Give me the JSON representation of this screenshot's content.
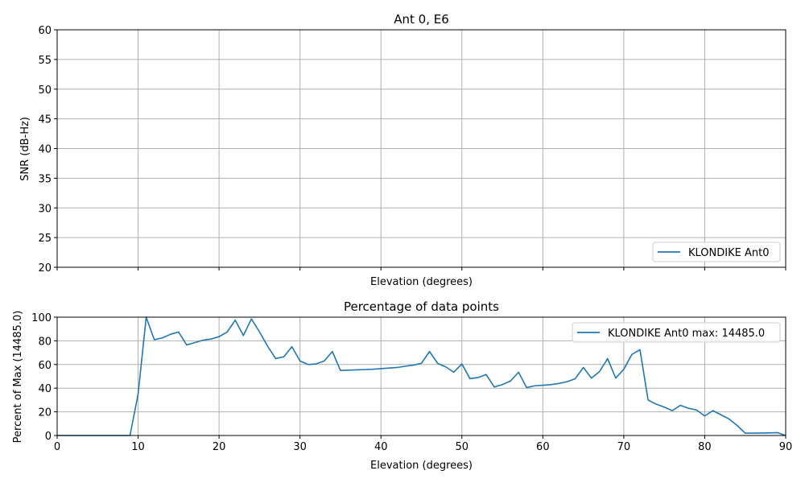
{
  "chart_data": [
    {
      "type": "line",
      "title": "Ant 0, E6",
      "xlabel": "Elevation (degrees)",
      "ylabel": "SNR (dB-Hz)",
      "xlim": [
        0,
        90
      ],
      "ylim": [
        20,
        60
      ],
      "yticks": [
        20,
        25,
        30,
        35,
        40,
        45,
        50,
        55,
        60
      ],
      "xticks": [
        0,
        10,
        20,
        30,
        40,
        50,
        60,
        70,
        80,
        90
      ],
      "show_xtick_labels": false,
      "grid": true,
      "legend": {
        "position": "lower-right",
        "entries": [
          "KLONDIKE Ant0"
        ]
      },
      "series": [
        {
          "name": "KLONDIKE Ant0",
          "color": "#1f77b4",
          "x": [],
          "y": []
        }
      ]
    },
    {
      "type": "line",
      "title": "Percentage of data points",
      "xlabel": "Elevation (degrees)",
      "ylabel": "Percent of Max (14485.0)",
      "xlim": [
        0,
        90
      ],
      "ylim": [
        0,
        100
      ],
      "yticks": [
        0,
        20,
        40,
        60,
        80,
        100
      ],
      "xticks": [
        0,
        10,
        20,
        30,
        40,
        50,
        60,
        70,
        80,
        90
      ],
      "show_xtick_labels": true,
      "grid": true,
      "legend": {
        "position": "upper-right",
        "entries": [
          "KLONDIKE Ant0 max: 14485.0"
        ]
      },
      "series": [
        {
          "name": "KLONDIKE Ant0 max: 14485.0",
          "color": "#1f77b4",
          "x": [
            0,
            1,
            2,
            3,
            4,
            5,
            6,
            7,
            8,
            9,
            10,
            11,
            12,
            13,
            14,
            15,
            16,
            17,
            18,
            19,
            20,
            21,
            22,
            23,
            24,
            25,
            26,
            27,
            28,
            29,
            30,
            31,
            32,
            33,
            34,
            35,
            36,
            37,
            38,
            39,
            40,
            41,
            42,
            43,
            44,
            45,
            46,
            47,
            48,
            49,
            50,
            51,
            52,
            53,
            54,
            55,
            56,
            57,
            58,
            59,
            60,
            61,
            62,
            63,
            64,
            65,
            66,
            67,
            68,
            69,
            70,
            71,
            72,
            73,
            74,
            75,
            76,
            77,
            78,
            79,
            80,
            81,
            82,
            83,
            84,
            85,
            86,
            87,
            88,
            89,
            90
          ],
          "y": [
            0,
            0,
            0,
            0,
            0,
            0,
            0,
            0,
            0,
            0,
            35,
            100,
            81,
            82.5,
            85.5,
            87.5,
            76.5,
            78.5,
            80.5,
            81.5,
            83.5,
            87.5,
            97.5,
            84.5,
            98.5,
            87.5,
            75.5,
            65,
            66.5,
            75,
            63,
            60,
            60.5,
            63,
            71,
            55,
            55.2,
            55.5,
            55.7,
            56,
            56.5,
            57,
            57.5,
            58.5,
            59.5,
            61,
            71,
            61,
            58,
            53.5,
            60.5,
            48,
            49,
            51.5,
            41,
            43,
            46,
            53.5,
            40.5,
            42,
            42.5,
            43,
            44,
            45.5,
            48,
            57.5,
            48.5,
            54,
            65,
            48.5,
            56,
            68.5,
            72.5,
            30,
            26.5,
            24,
            21,
            25.5,
            23,
            21.5,
            16.5,
            21,
            17.5,
            14,
            8.5,
            2,
            2,
            2.1,
            2.2,
            2.4,
            0
          ]
        }
      ]
    }
  ]
}
